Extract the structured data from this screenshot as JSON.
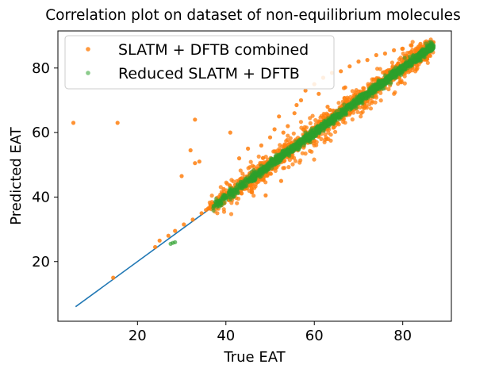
{
  "chart_data": {
    "type": "scatter",
    "title": "Correlation plot on dataset of non-equilibrium molecules",
    "xlabel": "True EAT",
    "ylabel": "Predicted EAT",
    "xlim": [
      2,
      91
    ],
    "ylim": [
      1.5,
      91.5
    ],
    "xticks": [
      20,
      40,
      60,
      80
    ],
    "yticks": [
      20,
      40,
      60,
      80
    ],
    "grid": false,
    "legend_position": "top-left",
    "reference_line": {
      "x": [
        6,
        87
      ],
      "y": [
        6,
        87
      ],
      "color": "#1f77b4"
    },
    "series": [
      {
        "name": "SLATM + DFTB combined",
        "color": "#ff7f0e",
        "outliers": [
          [
            5.5,
            63
          ],
          [
            15.5,
            63
          ],
          [
            14.5,
            15
          ],
          [
            24,
            24.5
          ],
          [
            25,
            26.5
          ],
          [
            27,
            28
          ],
          [
            28.5,
            29.5
          ],
          [
            30,
            46.5
          ],
          [
            30.5,
            31.5
          ],
          [
            32,
            54.5
          ],
          [
            32.5,
            33
          ],
          [
            33,
            64
          ],
          [
            33,
            50.5
          ],
          [
            34.5,
            35
          ],
          [
            35.5,
            36
          ],
          [
            36,
            36.5
          ],
          [
            34,
            51
          ],
          [
            37,
            38
          ],
          [
            38,
            39
          ],
          [
            39,
            40.5
          ],
          [
            40,
            41
          ],
          [
            39.5,
            42.5
          ],
          [
            42,
            42
          ],
          [
            44,
            43
          ],
          [
            41,
            60
          ],
          [
            43,
            52
          ],
          [
            45,
            55
          ],
          [
            46,
            47.5
          ],
          [
            47.5,
            48.5
          ],
          [
            48,
            56
          ],
          [
            49,
            40.5
          ],
          [
            50,
            58.5
          ],
          [
            51,
            61
          ],
          [
            52,
            65
          ],
          [
            52.5,
            45
          ],
          [
            53,
            60
          ],
          [
            54,
            62
          ],
          [
            55,
            54
          ],
          [
            55.5,
            66
          ],
          [
            56,
            68.5
          ],
          [
            57,
            70
          ],
          [
            58,
            73
          ],
          [
            59,
            57
          ],
          [
            60,
            75
          ],
          [
            61,
            72
          ],
          [
            62,
            77
          ],
          [
            63,
            68
          ],
          [
            64,
            78.5
          ],
          [
            65,
            63
          ],
          [
            66,
            79
          ],
          [
            67,
            74
          ],
          [
            68,
            80.5
          ],
          [
            70,
            82
          ],
          [
            72,
            82.5
          ],
          [
            74,
            84
          ],
          [
            76,
            84.5
          ],
          [
            78,
            85.5
          ],
          [
            80,
            86
          ],
          [
            82,
            87
          ],
          [
            84,
            87.5
          ],
          [
            86,
            88
          ]
        ],
        "main_band": {
          "x_range": [
            36,
            87
          ],
          "spread": 3.5
        }
      },
      {
        "name": "Reduced SLATM + DFTB",
        "color": "#2ca02c",
        "outliers": [
          [
            27.5,
            25.5
          ],
          [
            28,
            25.8
          ],
          [
            28.5,
            26
          ]
        ],
        "main_band": {
          "x_range": [
            37,
            87
          ],
          "spread": 1.4
        }
      }
    ]
  }
}
